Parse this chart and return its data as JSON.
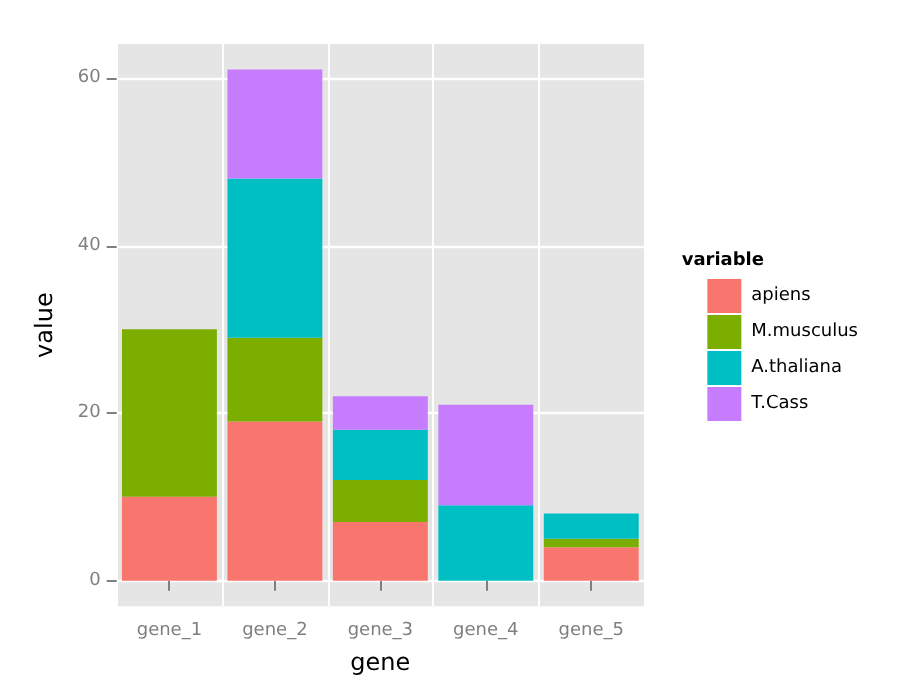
{
  "chart_data": {
    "type": "bar",
    "stacked": true,
    "xlabel": "gene",
    "ylabel": "value",
    "legend_title": "variable",
    "legend": "right",
    "grid": true,
    "categories": [
      "gene_1",
      "gene_2",
      "gene_3",
      "gene_4",
      "gene_5"
    ],
    "ylim": [
      -3.05,
      64.05
    ],
    "yticks": [
      0,
      20,
      40,
      60
    ],
    "series": [
      {
        "name": "apiens",
        "color": "#f8766d",
        "values": [
          10,
          19,
          7,
          0,
          4
        ]
      },
      {
        "name": "M.musculus",
        "color": "#7cae00",
        "values": [
          20,
          10,
          5,
          0,
          1
        ]
      },
      {
        "name": "A.thaliana",
        "color": "#00bfc4",
        "values": [
          0,
          19,
          6,
          9,
          3
        ]
      },
      {
        "name": "T.Cass",
        "color": "#c77cff",
        "values": [
          0,
          13,
          4,
          12,
          0
        ]
      }
    ]
  }
}
